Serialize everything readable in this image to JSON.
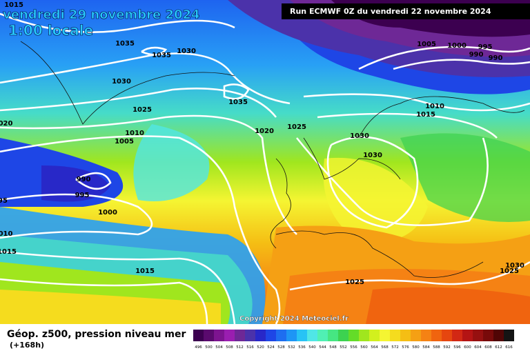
{
  "header": {
    "title": "vendredi 29 novembre 2024",
    "subtitle": "1:00 locale",
    "run": "Run ECMWF 0Z du vendredi 22 novembre 2024"
  },
  "map": {
    "isobar_labels": [
      "1015",
      "020",
      "95",
      "010",
      "1015",
      "1035",
      "1035",
      "1030",
      "1030",
      "1025",
      "1035",
      "1010",
      "1005",
      "990",
      "995",
      "1000",
      "1015",
      "1020",
      "1025",
      "1030",
      "1030",
      "1005",
      "1000",
      "995",
      "990",
      "990",
      "1010",
      "1015",
      "1025",
      "1030",
      "1025"
    ],
    "copyright": "Copyright 2024 Meteociel.fr"
  },
  "footer": {
    "title": "Géop. z500, pression niveau mer",
    "lead": "(+168h)",
    "scale": {
      "values": [
        496,
        500,
        504,
        508,
        512,
        516,
        520,
        524,
        528,
        532,
        536,
        540,
        544,
        548,
        552,
        556,
        560,
        564,
        568,
        572,
        576,
        580,
        584,
        588,
        592,
        596,
        600,
        604,
        608,
        612,
        616
      ],
      "colors": [
        "#3c0050",
        "#5a0a6e",
        "#7d1490",
        "#9a1eb0",
        "#6e2896",
        "#4b32aa",
        "#2828c8",
        "#1e46e6",
        "#1e6ef0",
        "#1e96f5",
        "#28c3f5",
        "#50e6e6",
        "#50f0b4",
        "#46e682",
        "#3cd250",
        "#64dc28",
        "#a0e61e",
        "#d2f01e",
        "#f5f532",
        "#f5dc1e",
        "#f5be14",
        "#f5a014",
        "#f58214",
        "#f0640f",
        "#e6460f",
        "#d22814",
        "#b41414",
        "#961010",
        "#780a0a",
        "#500505",
        "#141414"
      ]
    }
  }
}
